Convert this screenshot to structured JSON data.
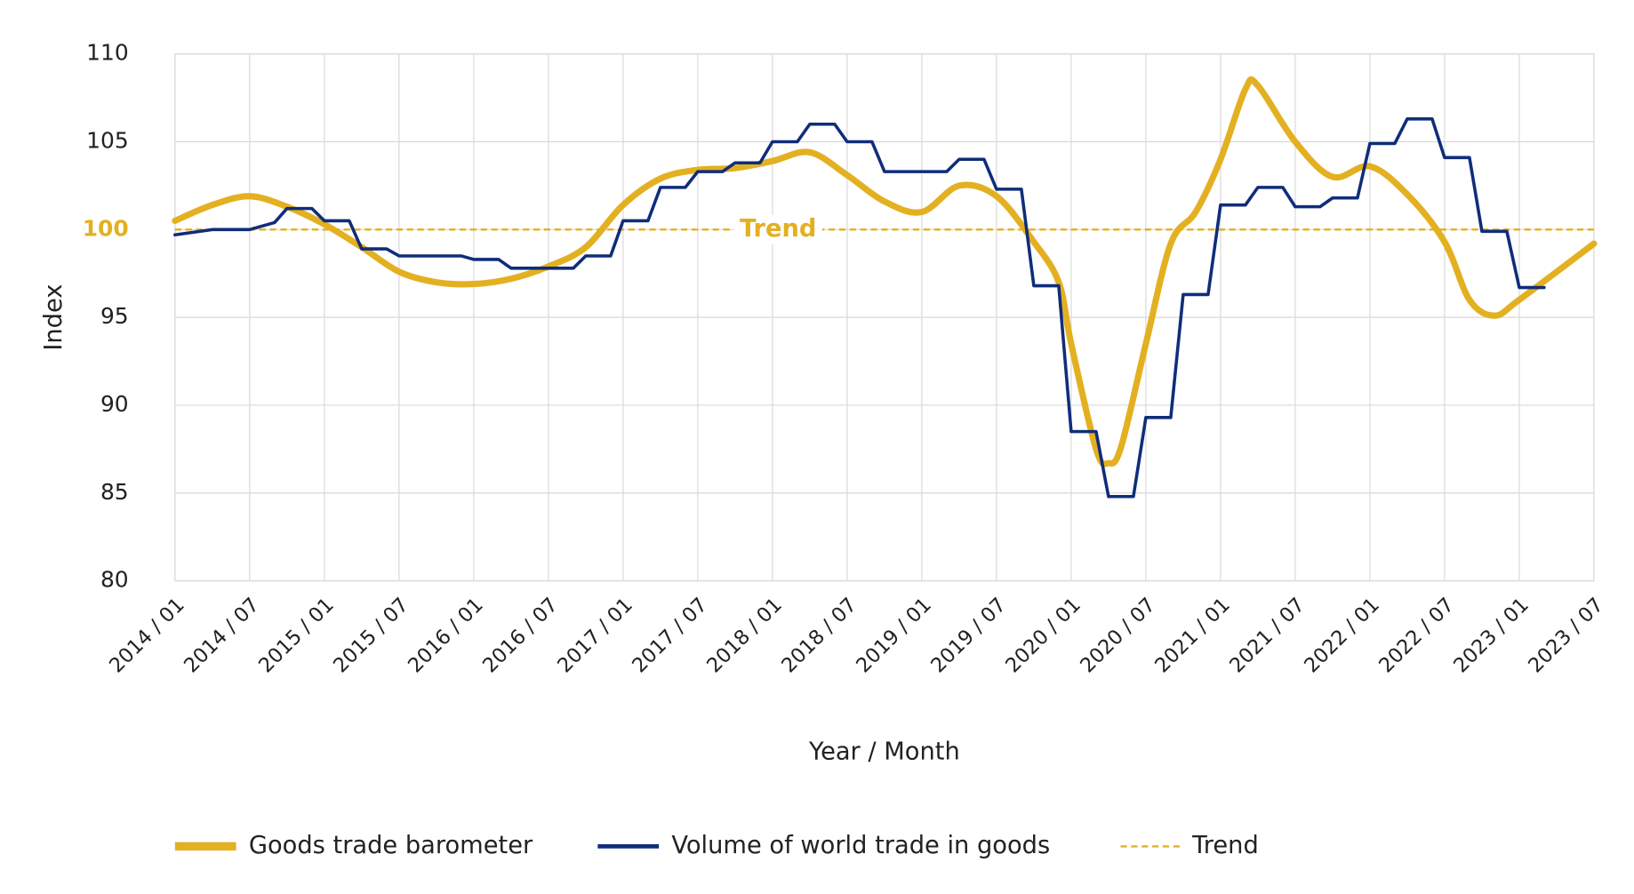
{
  "chart_data": {
    "type": "line",
    "x_label": "Year / Month",
    "y_label": "Index",
    "xlim": [
      "2014 / 01",
      "2023 / 07"
    ],
    "xticks": [
      "2014 / 01",
      "2014 / 07",
      "2015 / 01",
      "2015 / 07",
      "2016 / 01",
      "2016 / 07",
      "2017 / 01",
      "2017 / 07",
      "2018 / 01",
      "2018 / 07",
      "2019 / 01",
      "2019 / 07",
      "2020 / 01",
      "2020 / 07",
      "2021 / 01",
      "2021 / 07",
      "2022 / 01",
      "2022 / 07",
      "2023 / 01",
      "2023 / 07"
    ],
    "ylim": [
      80,
      110
    ],
    "yticks": [
      80,
      85,
      90,
      95,
      100,
      105,
      110
    ],
    "grid": true,
    "trend": {
      "name": "Trend",
      "value": 100,
      "color": "#e3b021"
    },
    "series": [
      {
        "name": "Goods trade barometer",
        "color": "#e3b021",
        "smooth": true,
        "x": [
          "2014 / 01",
          "2014 / 04",
          "2014 / 07",
          "2014 / 10",
          "2015 / 01",
          "2015 / 04",
          "2015 / 07",
          "2015 / 10",
          "2016 / 01",
          "2016 / 04",
          "2016 / 07",
          "2016 / 10",
          "2017 / 01",
          "2017 / 04",
          "2017 / 07",
          "2017 / 10",
          "2018 / 01",
          "2018 / 04",
          "2018 / 07",
          "2018 / 10",
          "2019 / 01",
          "2019 / 04",
          "2019 / 07",
          "2019 / 10",
          "2019 / 12",
          "2020 / 01",
          "2020 / 03",
          "2020 / 04",
          "2020 / 05",
          "2020 / 07",
          "2020 / 09",
          "2020 / 11",
          "2021 / 01",
          "2021 / 03",
          "2021 / 04",
          "2021 / 07",
          "2021 / 10",
          "2022 / 01",
          "2022 / 04",
          "2022 / 07",
          "2022 / 09",
          "2022 / 11",
          "2023 / 01",
          "2023 / 07"
        ],
        "values": [
          100.5,
          101.4,
          101.9,
          101.3,
          100.3,
          99.0,
          97.6,
          97.0,
          96.9,
          97.2,
          97.9,
          99.0,
          101.4,
          102.9,
          103.4,
          103.5,
          103.9,
          104.4,
          103.1,
          101.6,
          101.0,
          102.5,
          101.9,
          99.3,
          97.0,
          93.5,
          87.5,
          86.7,
          87.6,
          93.5,
          99.2,
          101.0,
          104.0,
          108.0,
          108.2,
          105.0,
          103.0,
          103.6,
          102.0,
          99.3,
          96.0,
          95.1,
          96.0,
          99.2
        ]
      },
      {
        "name": "Volume of world trade in goods",
        "color": "#0f2d7a",
        "smooth": false,
        "x": [
          "2014 / 01",
          "2014 / 04",
          "2014 / 07",
          "2014 / 09",
          "2014 / 10",
          "2014 / 12",
          "2015 / 01",
          "2015 / 03",
          "2015 / 04",
          "2015 / 06",
          "2015 / 07",
          "2015 / 12",
          "2016 / 01",
          "2016 / 03",
          "2016 / 04",
          "2016 / 09",
          "2016 / 10",
          "2016 / 12",
          "2017 / 01",
          "2017 / 03",
          "2017 / 04",
          "2017 / 06",
          "2017 / 07",
          "2017 / 09",
          "2017 / 10",
          "2017 / 12",
          "2018 / 01",
          "2018 / 03",
          "2018 / 04",
          "2018 / 06",
          "2018 / 07",
          "2018 / 09",
          "2018 / 10",
          "2019 / 03",
          "2019 / 04",
          "2019 / 06",
          "2019 / 07",
          "2019 / 09",
          "2019 / 10",
          "2019 / 12",
          "2020 / 01",
          "2020 / 03",
          "2020 / 04",
          "2020 / 06",
          "2020 / 07",
          "2020 / 09",
          "2020 / 10",
          "2020 / 12",
          "2021 / 01",
          "2021 / 03",
          "2021 / 04",
          "2021 / 06",
          "2021 / 07",
          "2021 / 09",
          "2021 / 10",
          "2021 / 12",
          "2022 / 01",
          "2022 / 03",
          "2022 / 04",
          "2022 / 06",
          "2022 / 07",
          "2022 / 09",
          "2022 / 10",
          "2022 / 12",
          "2023 / 01",
          "2023 / 03"
        ],
        "values": [
          99.7,
          100,
          100,
          100.4,
          101.2,
          101.2,
          100.5,
          100.5,
          98.9,
          98.9,
          98.5,
          98.5,
          98.3,
          98.3,
          97.8,
          97.8,
          98.5,
          98.5,
          100.5,
          100.5,
          102.4,
          102.4,
          103.3,
          103.3,
          103.8,
          103.8,
          105,
          105,
          106,
          106,
          105,
          105,
          103.3,
          103.3,
          104,
          104,
          102.3,
          102.3,
          96.8,
          96.8,
          88.5,
          88.5,
          84.8,
          84.8,
          89.3,
          89.3,
          96.3,
          96.3,
          101.4,
          101.4,
          102.4,
          102.4,
          101.3,
          101.3,
          101.8,
          101.8,
          104.9,
          104.9,
          106.3,
          106.3,
          104.1,
          104.1,
          99.9,
          99.9,
          96.7,
          96.7
        ]
      }
    ]
  }
}
